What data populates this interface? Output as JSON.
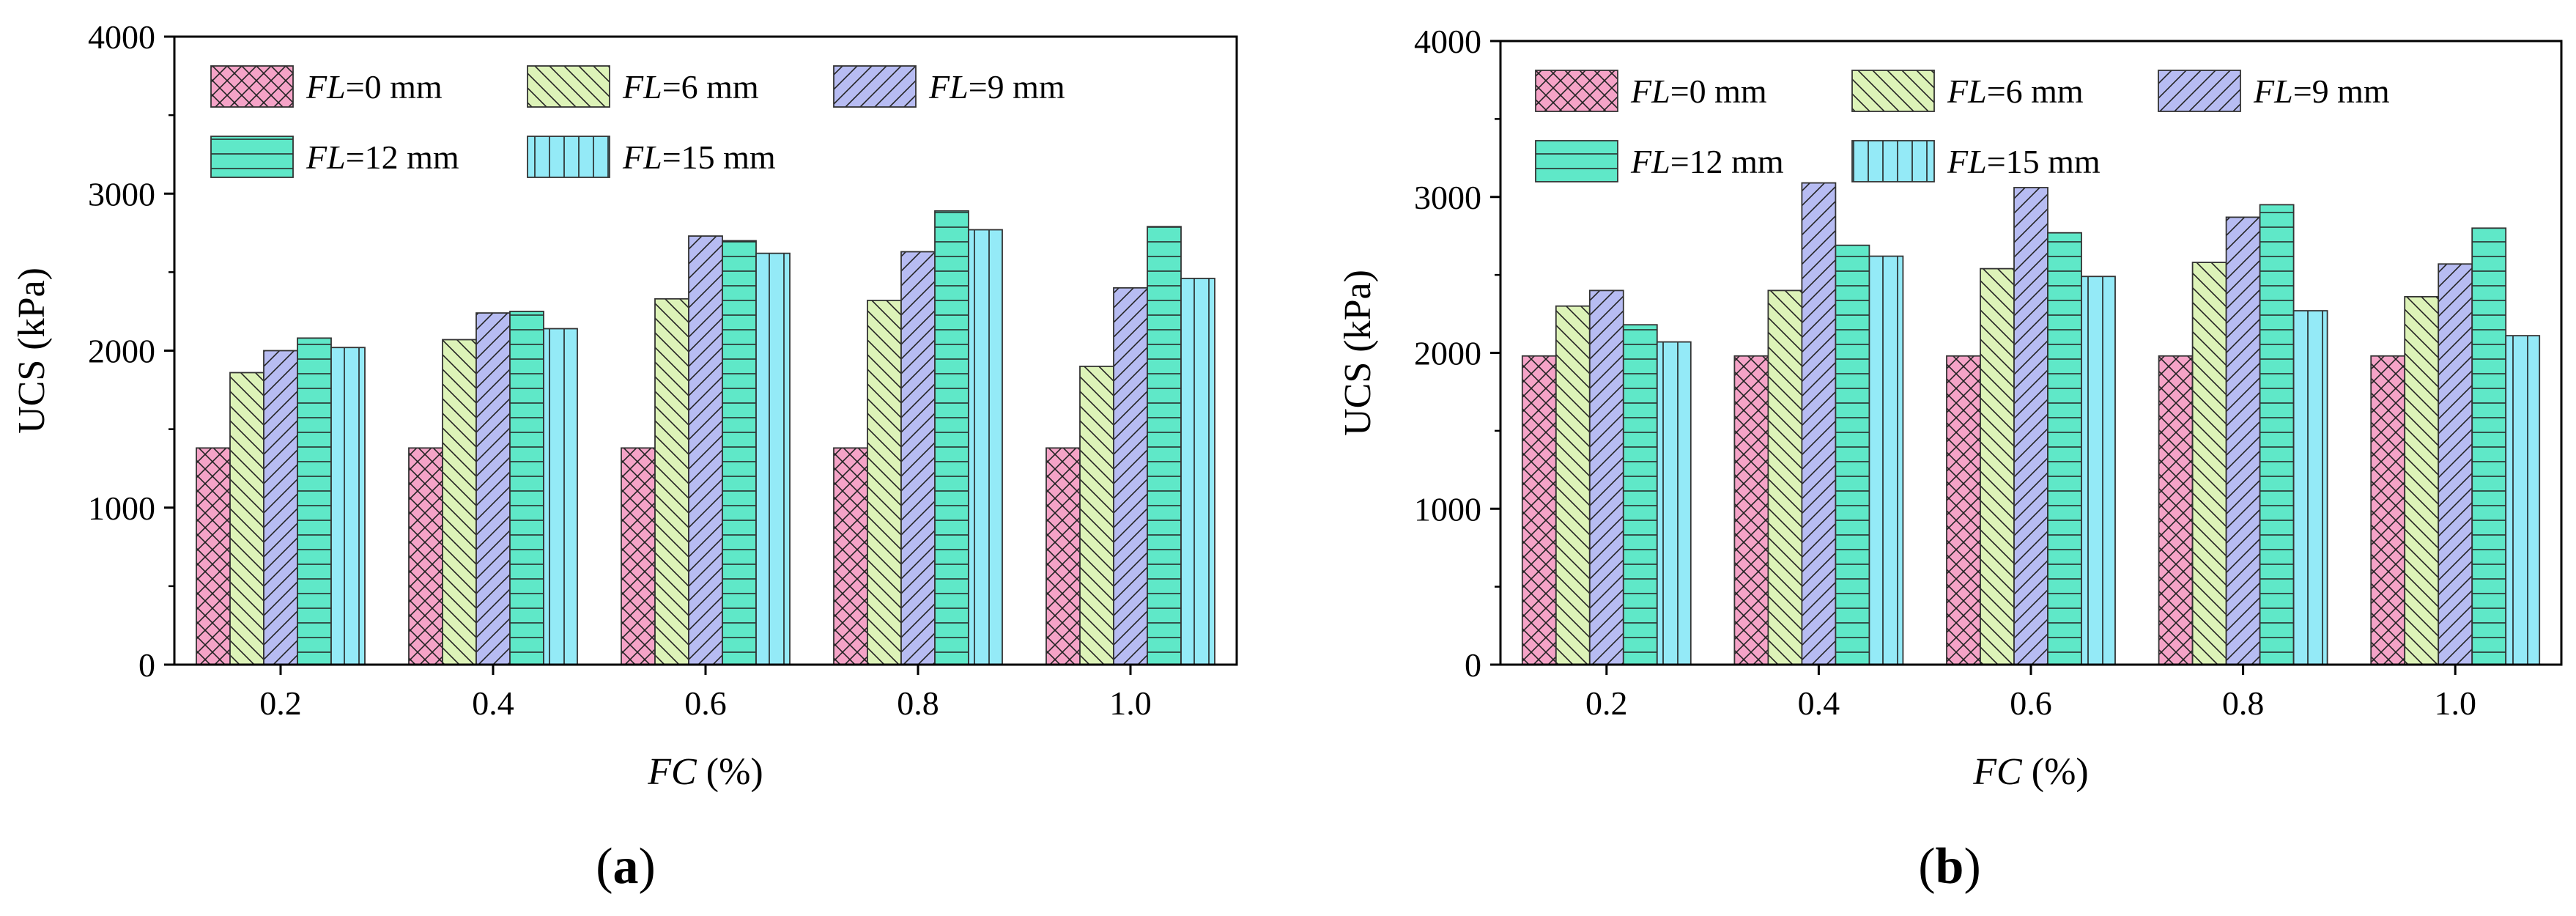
{
  "figure": {
    "panel_labels": [
      "a",
      "b"
    ]
  },
  "colors": {
    "fl0": "#f5a3c7",
    "fl6": "#ddf3b8",
    "fl9": "#b7bcf2",
    "fl12": "#5fe8c8",
    "fl15": "#94eaf7"
  },
  "chart_data": [
    {
      "type": "bar",
      "panel": "a",
      "title": "",
      "xlabel_italic": "FC",
      "xlabel_rest": " (%)",
      "ylabel": "UCS (kPa)",
      "ylim": [
        0,
        4000
      ],
      "yticks": [
        "0",
        "1000",
        "2000",
        "3000",
        "4000"
      ],
      "categories": [
        "0.2",
        "0.4",
        "0.6",
        "0.8",
        "1.0"
      ],
      "series": [
        {
          "name_italic": "FL",
          "name_rest": "=0 mm",
          "pattern": "crosshatch",
          "values": [
            1380,
            1380,
            1380,
            1380,
            1380
          ]
        },
        {
          "name_italic": "FL",
          "name_rest": "=6 mm",
          "pattern": "backslash",
          "values": [
            1860,
            2070,
            2330,
            2320,
            1900
          ]
        },
        {
          "name_italic": "FL",
          "name_rest": "=9 mm",
          "pattern": "slash",
          "values": [
            2000,
            2240,
            2730,
            2630,
            2400
          ]
        },
        {
          "name_italic": "FL",
          "name_rest": "=12 mm",
          "pattern": "horizontal",
          "values": [
            2080,
            2250,
            2700,
            2890,
            2790
          ]
        },
        {
          "name_italic": "FL",
          "name_rest": "=15 mm",
          "pattern": "vertical",
          "values": [
            2020,
            2140,
            2620,
            2770,
            2460
          ]
        }
      ]
    },
    {
      "type": "bar",
      "panel": "b",
      "title": "",
      "xlabel_italic": "FC",
      "xlabel_rest": " (%)",
      "ylabel": "UCS (kPa)",
      "ylim": [
        0,
        4000
      ],
      "yticks": [
        "0",
        "1000",
        "2000",
        "3000",
        "4000"
      ],
      "categories": [
        "0.2",
        "0.4",
        "0.6",
        "0.8",
        "1.0"
      ],
      "series": [
        {
          "name_italic": "FL",
          "name_rest": "=0 mm",
          "pattern": "crosshatch",
          "values": [
            1980,
            1980,
            1980,
            1980,
            1980
          ]
        },
        {
          "name_italic": "FL",
          "name_rest": "=6 mm",
          "pattern": "backslash",
          "values": [
            2300,
            2400,
            2540,
            2580,
            2360
          ]
        },
        {
          "name_italic": "FL",
          "name_rest": "=9 mm",
          "pattern": "slash",
          "values": [
            2400,
            3090,
            3060,
            2870,
            2570
          ]
        },
        {
          "name_italic": "FL",
          "name_rest": "=12 mm",
          "pattern": "horizontal",
          "values": [
            2180,
            2690,
            2770,
            2950,
            2800
          ]
        },
        {
          "name_italic": "FL",
          "name_rest": "=15 mm",
          "pattern": "vertical",
          "values": [
            2070,
            2620,
            2490,
            2270,
            2110
          ]
        }
      ]
    }
  ]
}
